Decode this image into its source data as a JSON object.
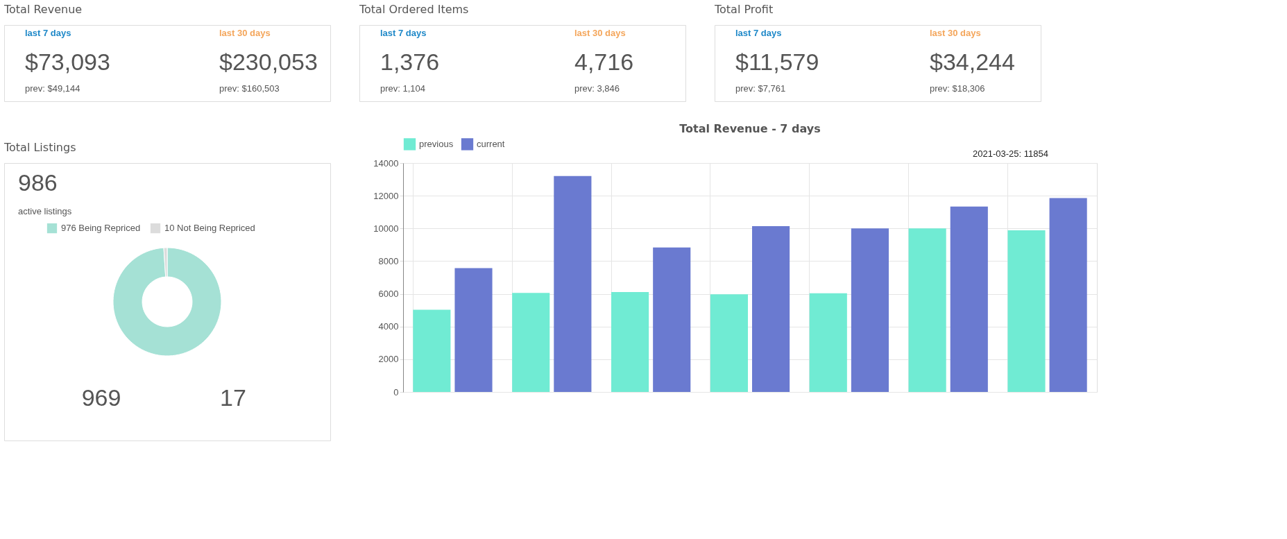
{
  "chart_data": [
    {
      "type": "other",
      "title": "Total Revenue",
      "annotations": [
        "last 7 days",
        "$73,093",
        "prev: $49,144",
        "last 30 days",
        "$230,053",
        "prev: $160,503"
      ]
    },
    {
      "type": "other",
      "title": "Total Ordered Items",
      "annotations": [
        "last 7 days",
        "1,376",
        "prev: 1,104",
        "last 30 days",
        "4,716",
        "prev: 3,846"
      ]
    },
    {
      "type": "other",
      "title": "Total Profit",
      "annotations": [
        "last 7 days",
        "$11,579",
        "prev: $7,761",
        "last 30 days",
        "$34,244",
        "prev: $18,306"
      ]
    },
    {
      "type": "donut",
      "title": "Total Listings",
      "categories": [
        "976 Being Repriced",
        "10 Not Being Repriced"
      ],
      "values": [
        976,
        10
      ],
      "colors": [
        "#a5e1d5",
        "#dcdcdc"
      ],
      "legend": "top",
      "annotations": [
        "986",
        "active listings",
        "969",
        "17"
      ]
    },
    {
      "type": "bar",
      "title": "Total Revenue - 7 days",
      "categories": [
        null,
        null,
        null,
        null,
        null,
        null,
        null
      ],
      "series": [
        {
          "name": "previous",
          "color": "#70ebd3",
          "values": [
            5030,
            6060,
            6110,
            5970,
            6030,
            10000,
            9890
          ]
        },
        {
          "name": "current",
          "color": "#6a7ad0",
          "values": [
            7570,
            13200,
            8830,
            10140,
            10000,
            11340,
            11854
          ]
        }
      ],
      "ylim": [
        0,
        14000
      ],
      "yticks": [
        0,
        2000,
        4000,
        6000,
        8000,
        10000,
        12000,
        14000
      ],
      "grid": true,
      "legend": "top",
      "tick_labels": "y",
      "annotations": [
        "2021-03-25: 11854"
      ]
    }
  ]
}
